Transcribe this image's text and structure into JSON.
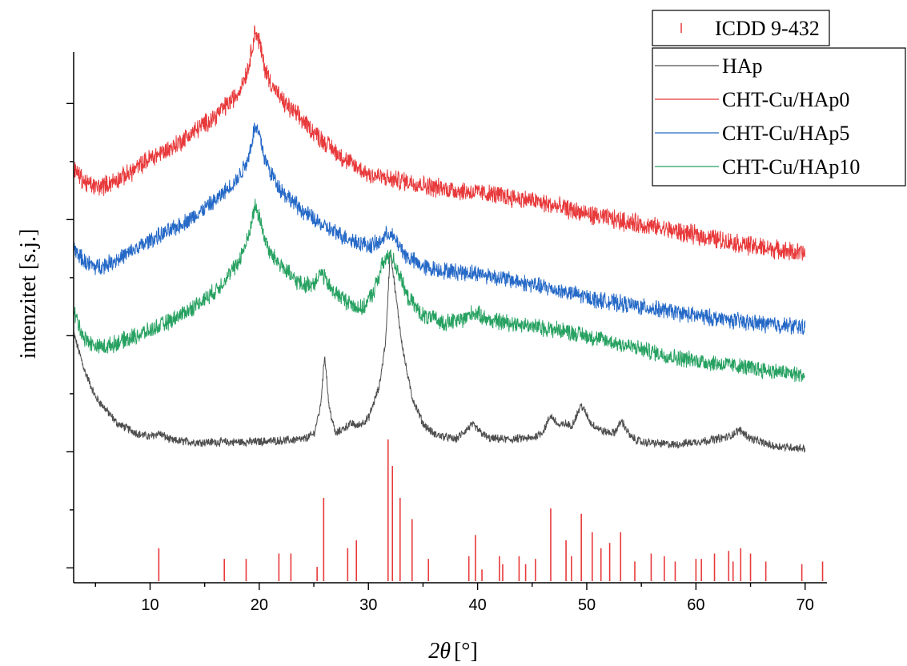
{
  "chart_data": {
    "type": "line",
    "title": "",
    "xlabel": "2θ [°]",
    "xlabel_parts": {
      "symbol": "2θ",
      "unit": "[°]"
    },
    "ylabel": "intenzitet [s.j.]",
    "xlim": [
      3,
      72
    ],
    "ylim": [
      0,
      100
    ],
    "x_ticks": [
      10,
      20,
      30,
      40,
      50,
      60,
      70
    ],
    "y_tick_labels_shown": false,
    "grid": false,
    "legend_placement": "top-right",
    "series": [
      {
        "name": "HAp",
        "color": "#4d4d4d",
        "noise": 0.7,
        "x": [
          3,
          4,
          5,
          7,
          9,
          10,
          10.8,
          12,
          14,
          16,
          18,
          20,
          22,
          24,
          25,
          25.6,
          26,
          26.4,
          27,
          28,
          28.5,
          29,
          30,
          31,
          31.6,
          32,
          32.4,
          33,
          33.5,
          34,
          35,
          36,
          38,
          39.5,
          40.2,
          41,
          43,
          44,
          45,
          46,
          46.7,
          47.5,
          48,
          48.6,
          49.5,
          50.4,
          51.5,
          52.5,
          53.2,
          54,
          55,
          58,
          61,
          63,
          64,
          65,
          67,
          70
        ],
        "y": [
          47,
          40,
          35,
          30,
          28,
          27.5,
          28.2,
          26.8,
          26.5,
          26.5,
          26.5,
          26.6,
          26.8,
          27,
          28,
          33,
          43,
          33,
          28,
          29.5,
          30,
          29.5,
          31,
          37,
          46,
          63,
          56,
          46,
          40,
          35,
          30,
          28,
          27,
          29.8,
          28.5,
          27.2,
          27,
          27.2,
          27.2,
          28.5,
          31.5,
          29.5,
          30,
          29.5,
          33.5,
          30,
          28.5,
          28.2,
          30.5,
          27.5,
          26.5,
          26,
          26.8,
          27.5,
          28.8,
          27.2,
          25.8,
          25.3
        ]
      },
      {
        "name": "CHT-Cu/HAp0",
        "color": "#e8393b",
        "noise": 1.6,
        "x": [
          3,
          4,
          5,
          6,
          8,
          10,
          12,
          14,
          16,
          18,
          19,
          19.6,
          20,
          20.5,
          21,
          22,
          23,
          24,
          26,
          28,
          30,
          32,
          34,
          36,
          38,
          40,
          42,
          45,
          48,
          51,
          55,
          60,
          65,
          70
        ],
        "y": [
          78,
          75.5,
          74.5,
          75,
          77,
          80,
          82,
          85,
          88,
          92,
          97,
          104,
          102,
          97,
          94.5,
          91,
          89,
          87,
          83,
          79.5,
          77,
          76,
          75.5,
          74.5,
          74,
          73.5,
          73,
          72,
          70.5,
          69,
          67.5,
          65.5,
          63.5,
          62
        ]
      },
      {
        "name": "CHT-Cu/HAp5",
        "color": "#2569c7",
        "noise": 1.4,
        "x": [
          3,
          4,
          5,
          6,
          8,
          10,
          12,
          14,
          16,
          18,
          19,
          19.6,
          20,
          20.5,
          21,
          22,
          23,
          24,
          26,
          28,
          30,
          31,
          31.8,
          32.5,
          33.5,
          35,
          37,
          40,
          42,
          45,
          48,
          51,
          55,
          60,
          65,
          70
        ],
        "y": [
          63,
          60.5,
          59.5,
          60,
          62,
          64.5,
          66.5,
          69,
          72,
          76,
          80,
          86,
          84.5,
          80,
          77.5,
          74,
          72,
          70,
          67,
          65,
          63.5,
          64,
          66,
          64.5,
          61.5,
          59.5,
          58.8,
          58.3,
          57.5,
          56.2,
          54.8,
          53.3,
          52,
          50.3,
          49,
          48.2
        ]
      },
      {
        "name": "CHT-Cu/HAp10",
        "color": "#27a161",
        "noise": 1.4,
        "x": [
          3,
          4,
          5,
          6,
          8,
          10,
          12,
          14,
          16,
          18,
          19,
          19.6,
          20,
          20.5,
          21,
          22,
          23,
          24,
          25,
          25.7,
          26.5,
          28,
          29.5,
          30.5,
          31.3,
          32,
          32.8,
          33.5,
          35,
          37,
          38.5,
          39.7,
          41,
          43,
          46,
          48,
          50,
          54,
          58,
          62,
          66,
          70
        ],
        "y": [
          51,
          46,
          44.5,
          44.5,
          46,
          47.5,
          49.5,
          52,
          55,
          60,
          65,
          71,
          69,
          65,
          62,
          60,
          57.5,
          56,
          56.5,
          58.5,
          55.5,
          53,
          51.5,
          55,
          60,
          62,
          58.5,
          54,
          50.3,
          49,
          49.5,
          51,
          49.5,
          49,
          48,
          47.5,
          46.5,
          44.5,
          42.5,
          41.3,
          40.2,
          39
        ]
      }
    ],
    "reference": {
      "name": "ICDD 9-432",
      "color": "#e8393b",
      "peaks": [
        [
          10.8,
          6.5
        ],
        [
          16.8,
          4.5
        ],
        [
          18.8,
          4.5
        ],
        [
          21.8,
          5.5
        ],
        [
          22.9,
          5.5
        ],
        [
          25.3,
          3
        ],
        [
          25.9,
          16
        ],
        [
          28.1,
          6.5
        ],
        [
          28.9,
          8
        ],
        [
          31.8,
          27
        ],
        [
          32.2,
          22
        ],
        [
          32.9,
          16
        ],
        [
          34.0,
          12
        ],
        [
          35.5,
          4.5
        ],
        [
          39.2,
          5
        ],
        [
          39.8,
          9
        ],
        [
          40.4,
          2.5
        ],
        [
          42.0,
          5
        ],
        [
          42.3,
          3.5
        ],
        [
          43.8,
          5
        ],
        [
          44.4,
          3.5
        ],
        [
          45.3,
          4.5
        ],
        [
          46.7,
          14
        ],
        [
          48.1,
          8
        ],
        [
          48.6,
          5
        ],
        [
          49.5,
          13
        ],
        [
          50.5,
          9.5
        ],
        [
          51.3,
          6.5
        ],
        [
          52.1,
          7.5
        ],
        [
          53.1,
          9.5
        ],
        [
          54.4,
          4
        ],
        [
          55.9,
          5.5
        ],
        [
          57.1,
          5
        ],
        [
          58.1,
          4
        ],
        [
          60.0,
          4.5
        ],
        [
          60.5,
          4.5
        ],
        [
          61.7,
          5.5
        ],
        [
          63.0,
          6
        ],
        [
          63.4,
          4
        ],
        [
          64.1,
          6.5
        ],
        [
          65.0,
          5.5
        ],
        [
          66.4,
          4
        ],
        [
          69.7,
          3.5
        ],
        [
          71.6,
          4
        ]
      ]
    }
  }
}
